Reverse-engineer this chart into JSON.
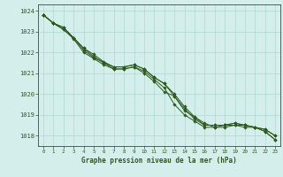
{
  "x": [
    0,
    1,
    2,
    3,
    4,
    5,
    6,
    7,
    8,
    9,
    10,
    11,
    12,
    13,
    14,
    15,
    16,
    17,
    18,
    19,
    20,
    21,
    22,
    23
  ],
  "series": [
    [
      1023.8,
      1023.4,
      1023.1,
      1022.7,
      1022.1,
      1021.75,
      1021.5,
      1021.2,
      1021.2,
      1021.3,
      1021.0,
      1020.6,
      1020.1,
      1019.9,
      1019.2,
      1018.9,
      1018.6,
      1018.4,
      1018.4,
      1018.5,
      1018.4,
      1018.4,
      1018.2,
      1017.8
    ],
    [
      1023.8,
      1023.4,
      1023.1,
      1022.65,
      1022.0,
      1021.7,
      1021.4,
      1021.2,
      1021.2,
      1021.3,
      1021.1,
      1020.7,
      1020.3,
      1019.5,
      1019.0,
      1018.7,
      1018.4,
      1018.4,
      1018.5,
      1018.5,
      1018.5,
      1018.4,
      1018.2,
      1017.8
    ],
    [
      1023.8,
      1023.4,
      1023.2,
      1022.7,
      1022.2,
      1021.9,
      1021.55,
      1021.3,
      1021.3,
      1021.4,
      1021.2,
      1020.8,
      1020.5,
      1019.9,
      1019.3,
      1018.8,
      1018.5,
      1018.5,
      1018.5,
      1018.6,
      1018.5,
      1018.4,
      1018.3,
      1018.0
    ],
    [
      1023.8,
      1023.4,
      1023.2,
      1022.7,
      1022.2,
      1021.8,
      1021.5,
      1021.3,
      1021.3,
      1021.4,
      1021.2,
      1020.8,
      1020.5,
      1020.0,
      1019.4,
      1018.9,
      1018.5,
      1018.5,
      1018.5,
      1018.6,
      1018.5,
      1018.4,
      1018.3,
      1018.0
    ]
  ],
  "line_colors": [
    "#2d5a1b",
    "#2d5a1b",
    "#2d5a1b",
    "#2d5a1b"
  ],
  "bg_color": "#d4eeeb",
  "grid_color": "#b0d8d4",
  "text_color": "#2d5a1b",
  "xlabel": "Graphe pression niveau de la mer (hPa)",
  "ylim": [
    1017.5,
    1024.3
  ],
  "yticks": [
    1018,
    1019,
    1020,
    1021,
    1022,
    1023,
    1024
  ],
  "xticks": [
    0,
    1,
    2,
    3,
    4,
    5,
    6,
    7,
    8,
    9,
    10,
    11,
    12,
    13,
    14,
    15,
    16,
    17,
    18,
    19,
    20,
    21,
    22,
    23
  ]
}
